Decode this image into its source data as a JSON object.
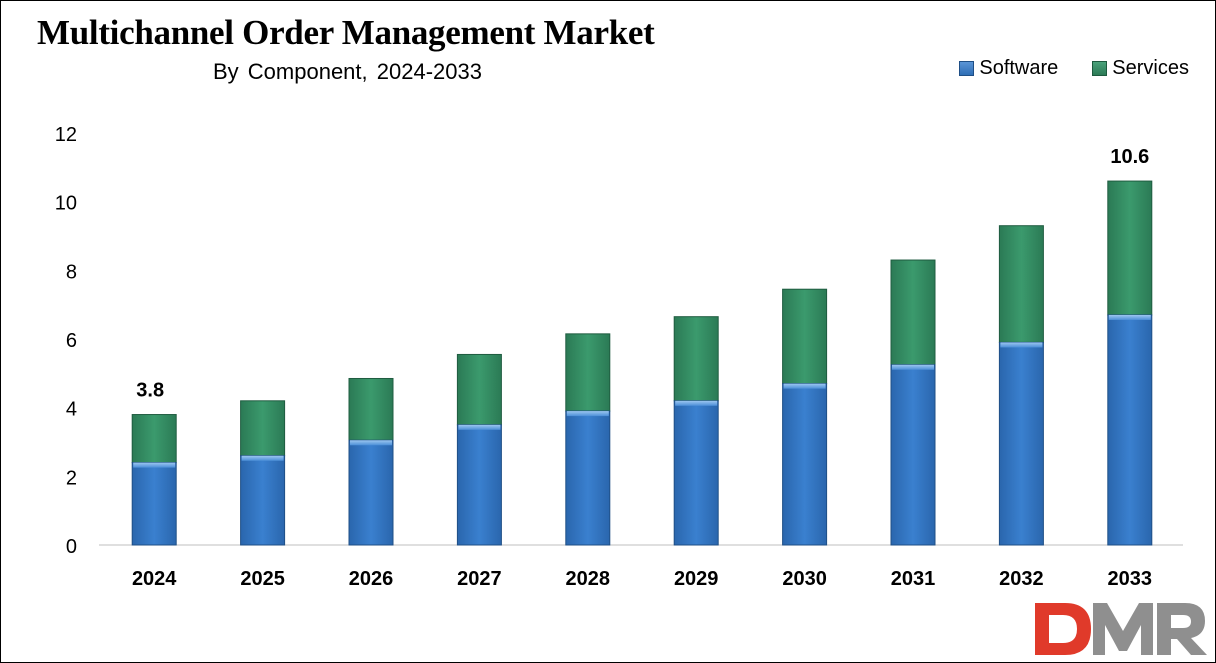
{
  "title": "Multichannel Order Management Market",
  "subtitle": "By  Component, 2024-2033",
  "legend": [
    {
      "name": "Software",
      "color": "#2e75c5"
    },
    {
      "name": "Services",
      "color": "#328a60"
    }
  ],
  "logo": {
    "text": "DMR"
  },
  "chart_data": {
    "type": "bar",
    "stacked": true,
    "title": "Multichannel Order Management Market",
    "subtitle": "By  Component, 2024-2033",
    "xlabel": "",
    "ylabel": "",
    "categories": [
      "2024",
      "2025",
      "2026",
      "2027",
      "2028",
      "2029",
      "2030",
      "2031",
      "2032",
      "2033"
    ],
    "series": [
      {
        "name": "Software",
        "color": "#2e75c5",
        "values": [
          2.4,
          2.6,
          3.05,
          3.5,
          3.9,
          4.2,
          4.7,
          5.25,
          5.9,
          6.7
        ]
      },
      {
        "name": "Services",
        "color": "#328a60",
        "values": [
          1.4,
          1.6,
          1.8,
          2.05,
          2.25,
          2.45,
          2.75,
          3.05,
          3.4,
          3.9
        ]
      }
    ],
    "totals_labels": [
      {
        "category": "2024",
        "label": "3.8"
      },
      {
        "category": "2033",
        "label": "10.6"
      }
    ],
    "yticks": [
      "0",
      "2",
      "4",
      "6",
      "8",
      "10",
      "12"
    ],
    "ylim": [
      0,
      12
    ],
    "grid": false,
    "legend_position": "top-right"
  }
}
